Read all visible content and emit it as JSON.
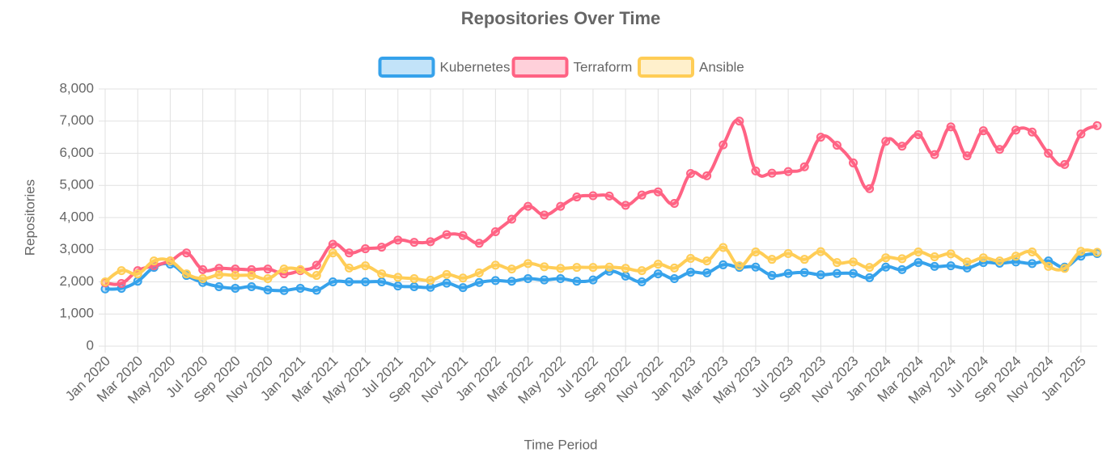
{
  "chart_data": {
    "type": "line",
    "title": "Repositories Over Time",
    "x_label": "Time Period",
    "y_label": "Repositories",
    "categories": [
      "Jan 2020",
      null,
      "Mar 2020",
      null,
      "May 2020",
      null,
      "Jul 2020",
      null,
      "Sep 2020",
      null,
      "Nov 2020",
      null,
      "Jan 2021",
      null,
      "Mar 2021",
      null,
      "May 2021",
      null,
      "Jul 2021",
      null,
      "Sep 2021",
      null,
      "Nov 2021",
      null,
      "Jan 2022",
      null,
      "Mar 2022",
      null,
      "May 2022",
      null,
      "Jul 2022",
      null,
      "Sep 2022",
      null,
      "Nov 2022",
      null,
      "Jan 2023",
      null,
      "Mar 2023",
      null,
      "May 2023",
      null,
      "Jul 2023",
      null,
      "Sep 2023",
      null,
      "Nov 2023",
      null,
      "Jan 2024",
      null,
      "Mar 2024",
      null,
      "May 2024",
      null,
      "Jul 2024",
      null,
      "Sep 2024",
      null,
      "Nov 2024",
      null,
      "Jan 2025",
      null
    ],
    "series": [
      {
        "name": "Kubernetes",
        "color": "#36a2eb",
        "values": [
          1780,
          1800,
          2020,
          2450,
          2550,
          2200,
          1980,
          1850,
          1800,
          1850,
          1750,
          1730,
          1800,
          1740,
          2000,
          2000,
          2000,
          2000,
          1870,
          1850,
          1830,
          1960,
          1820,
          1980,
          2040,
          2020,
          2100,
          2060,
          2100,
          2020,
          2060,
          2330,
          2180,
          2000,
          2250,
          2100,
          2300,
          2280,
          2530,
          2450,
          2460,
          2200,
          2260,
          2290,
          2220,
          2260,
          2260,
          2130,
          2460,
          2380,
          2600,
          2480,
          2500,
          2430,
          2600,
          2580,
          2620,
          2570,
          2650,
          2460,
          2800,
          2880
        ]
      },
      {
        "name": "Terraform",
        "color": "#ff6384",
        "values": [
          1970,
          1950,
          2350,
          2500,
          2650,
          2900,
          2380,
          2420,
          2400,
          2380,
          2400,
          2250,
          2350,
          2520,
          3170,
          2900,
          3030,
          3080,
          3300,
          3230,
          3250,
          3470,
          3440,
          3200,
          3560,
          3950,
          4350,
          4080,
          4350,
          4640,
          4680,
          4670,
          4380,
          4700,
          4800,
          4440,
          5370,
          5300,
          6260,
          7000,
          5450,
          5380,
          5430,
          5580,
          6500,
          6250,
          5700,
          4900,
          6370,
          6220,
          6580,
          5960,
          6820,
          5920,
          6700,
          6120,
          6720,
          6660,
          6000,
          5650,
          6600,
          6860
        ]
      },
      {
        "name": "Ansible",
        "color": "#ffcd56",
        "values": [
          2000,
          2350,
          2250,
          2650,
          2650,
          2250,
          2100,
          2220,
          2200,
          2200,
          2100,
          2400,
          2380,
          2200,
          2900,
          2430,
          2500,
          2250,
          2140,
          2100,
          2050,
          2230,
          2120,
          2280,
          2520,
          2400,
          2570,
          2470,
          2420,
          2450,
          2450,
          2460,
          2420,
          2350,
          2550,
          2430,
          2730,
          2650,
          3070,
          2500,
          2930,
          2700,
          2880,
          2700,
          2940,
          2600,
          2620,
          2450,
          2750,
          2720,
          2930,
          2780,
          2870,
          2620,
          2750,
          2650,
          2800,
          2930,
          2480,
          2420,
          2950,
          2920
        ]
      }
    ],
    "ylim": [
      0,
      8000
    ],
    "yticks": [
      0,
      {
        "value": 1000,
        "label": "1,000"
      },
      {
        "value": 2000,
        "label": "2,000"
      },
      {
        "value": 3000,
        "label": "3,000"
      },
      {
        "value": 4000,
        "label": "4,000"
      },
      {
        "value": 5000,
        "label": "5,000"
      },
      {
        "value": 6000,
        "label": "6,000"
      },
      {
        "value": 7000,
        "label": "7,000"
      },
      {
        "value": 8000,
        "label": "8,000"
      }
    ],
    "grid": true,
    "legend": "top"
  }
}
